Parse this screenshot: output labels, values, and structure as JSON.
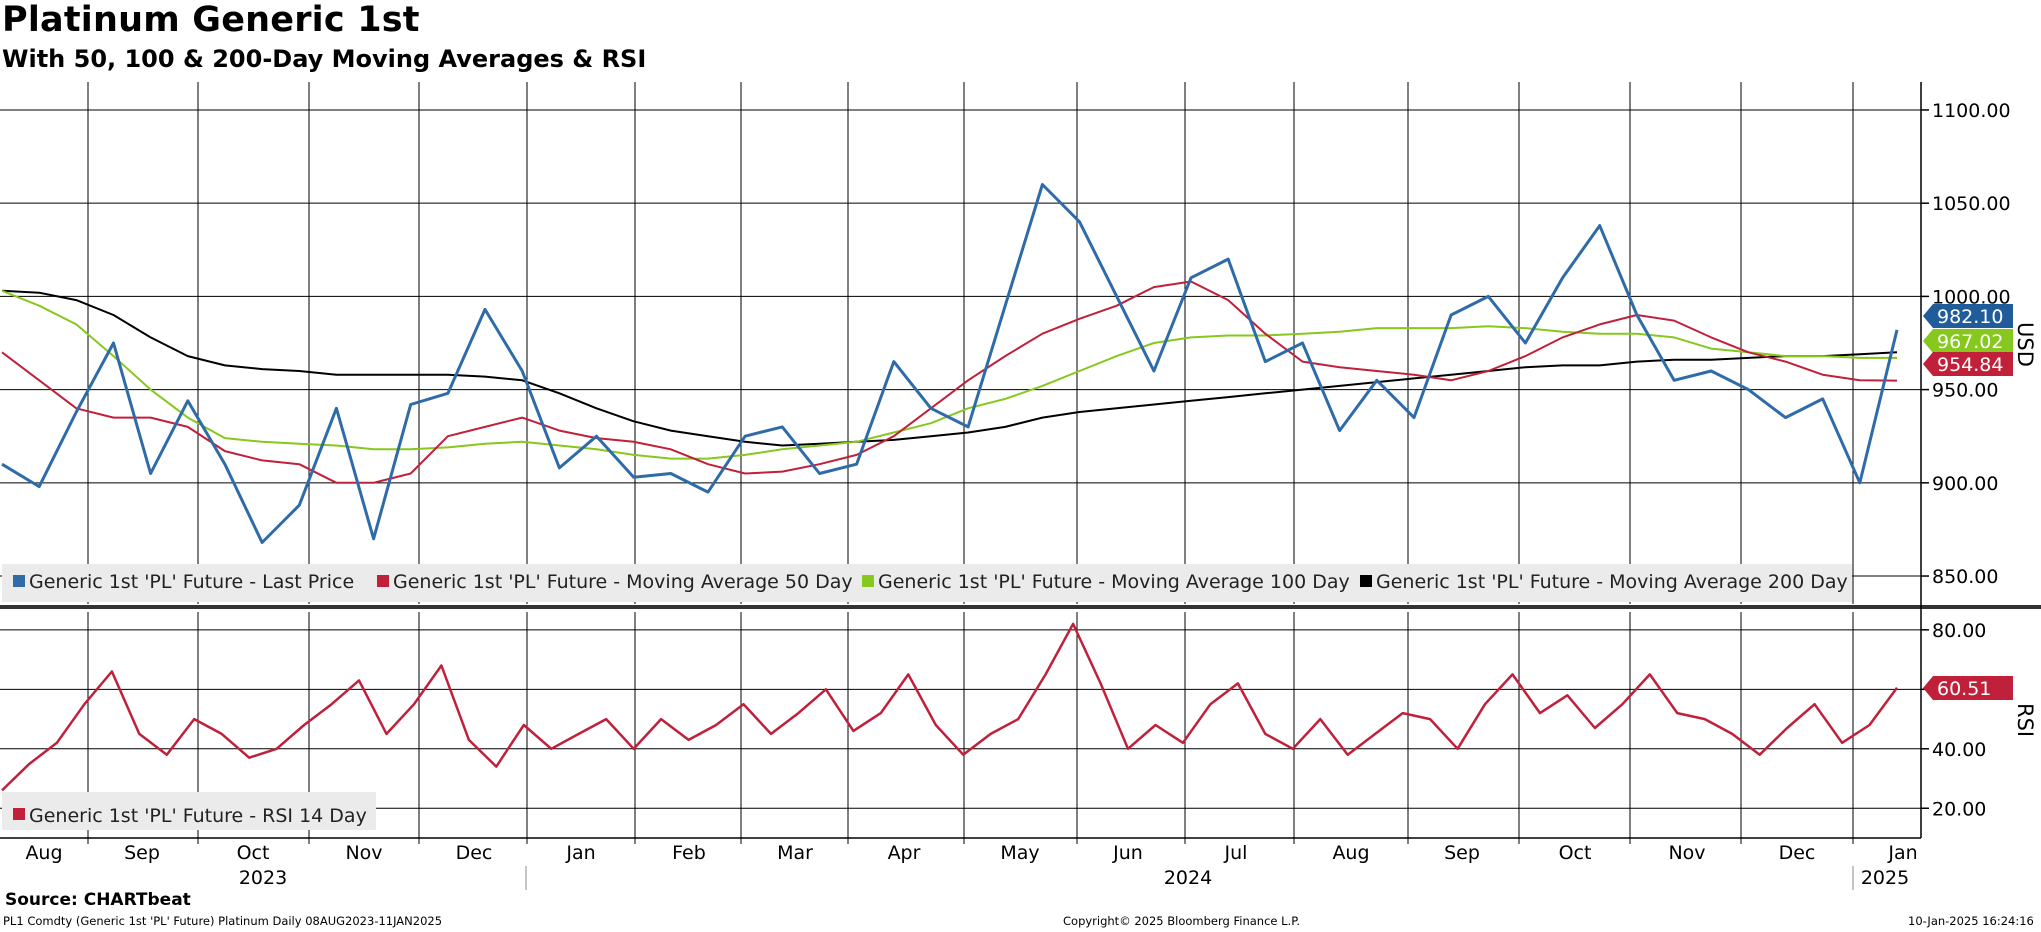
{
  "title": "Platinum Generic 1st",
  "subtitle": "With 50, 100 & 200-Day Moving Averages & RSI",
  "source": "Source: CHARTbeat",
  "footer": {
    "left": "PL1 Comdty (Generic 1st 'PL' Future) Platinum  Daily 08AUG2023-11JAN2025",
    "center": "Copyright© 2025 Bloomberg Finance L.P.",
    "right": "10-Jan-2025 16:24:16"
  },
  "colors": {
    "price": "#2E6BA8",
    "ma50": "#C0203A",
    "ma100": "#86C81E",
    "ma200": "#000000",
    "rsi": "#C0203A",
    "grid": "#000000"
  },
  "chart_data": [
    {
      "type": "line",
      "panel": "price",
      "ylabel": "USD",
      "ylim": [
        835,
        1115
      ],
      "yticks": [
        "1100.00",
        "1050.00",
        "1000.00",
        "950.00",
        "900.00",
        "850.00"
      ],
      "x_tick_labels": [
        "Aug",
        "Sep",
        "Oct",
        "Nov",
        "Dec",
        "Jan",
        "Feb",
        "Mar",
        "Apr",
        "May",
        "Jun",
        "Jul",
        "Aug",
        "Sep",
        "Oct",
        "Nov",
        "Dec",
        "Jan"
      ],
      "year_labels": [
        "2023",
        "2024",
        "2025"
      ],
      "legend": "bottom-left",
      "grid": true,
      "x": [
        "2023-08-08",
        "2023-08-18",
        "2023-08-28",
        "2023-09-08",
        "2023-09-18",
        "2023-09-28",
        "2023-10-08",
        "2023-10-18",
        "2023-10-28",
        "2023-11-08",
        "2023-11-18",
        "2023-11-28",
        "2023-12-08",
        "2023-12-18",
        "2023-12-28",
        "2024-01-08",
        "2024-01-18",
        "2024-01-28",
        "2024-02-08",
        "2024-02-18",
        "2024-02-28",
        "2024-03-08",
        "2024-03-18",
        "2024-03-28",
        "2024-04-08",
        "2024-04-18",
        "2024-04-28",
        "2024-05-08",
        "2024-05-18",
        "2024-05-28",
        "2024-06-08",
        "2024-06-18",
        "2024-06-28",
        "2024-07-08",
        "2024-07-18",
        "2024-07-28",
        "2024-08-08",
        "2024-08-18",
        "2024-08-28",
        "2024-09-08",
        "2024-09-18",
        "2024-09-28",
        "2024-10-08",
        "2024-10-18",
        "2024-10-28",
        "2024-11-08",
        "2024-11-18",
        "2024-11-28",
        "2024-12-08",
        "2024-12-18",
        "2024-12-28",
        "2025-01-10"
      ],
      "series": [
        {
          "name": "Generic 1st 'PL' Future - Last Price",
          "last_value": "982.10",
          "values": [
            910,
            898,
            938,
            975,
            905,
            944,
            910,
            868,
            888,
            940,
            870,
            942,
            948,
            993,
            960,
            908,
            925,
            903,
            905,
            895,
            925,
            930,
            905,
            910,
            965,
            940,
            930,
            995,
            1060,
            1040,
            1000,
            960,
            1010,
            1020,
            965,
            975,
            928,
            955,
            935,
            990,
            1000,
            975,
            1010,
            1038,
            990,
            955,
            960,
            950,
            935,
            945,
            900,
            982
          ]
        },
        {
          "name": "Generic 1st 'PL' Future - Moving Average 50 Day",
          "last_value": "954.84",
          "values": [
            970,
            955,
            940,
            935,
            935,
            930,
            917,
            912,
            910,
            900,
            900,
            905,
            925,
            930,
            935,
            928,
            924,
            922,
            918,
            910,
            905,
            906,
            910,
            915,
            925,
            940,
            955,
            968,
            980,
            988,
            995,
            1005,
            1008,
            998,
            980,
            965,
            962,
            960,
            958,
            955,
            960,
            968,
            978,
            985,
            990,
            987,
            978,
            970,
            965,
            958,
            955,
            954.84
          ]
        },
        {
          "name": "Generic 1st 'PL' Future - Moving Average 100 Day",
          "last_value": "967.02",
          "values": [
            1003,
            995,
            985,
            968,
            950,
            935,
            924,
            922,
            921,
            920,
            918,
            918,
            919,
            921,
            922,
            920,
            918,
            915,
            913,
            913,
            915,
            918,
            920,
            922,
            927,
            932,
            940,
            945,
            952,
            960,
            968,
            975,
            978,
            979,
            979,
            980,
            981,
            983,
            983,
            983,
            984,
            983,
            981,
            980,
            980,
            978,
            972,
            970,
            968,
            968,
            967,
            967.02
          ]
        },
        {
          "name": "Generic 1st 'PL' Future - Moving Average 200 Day",
          "last_value": "",
          "values": [
            1003,
            1002,
            998,
            990,
            978,
            968,
            963,
            961,
            960,
            958,
            958,
            958,
            958,
            957,
            955,
            948,
            940,
            933,
            928,
            925,
            922,
            920,
            921,
            922,
            923,
            925,
            927,
            930,
            935,
            938,
            940,
            942,
            944,
            946,
            948,
            950,
            952,
            954,
            956,
            958,
            960,
            962,
            963,
            963,
            965,
            966,
            966,
            967,
            968,
            968,
            969,
            970
          ]
        }
      ]
    },
    {
      "type": "line",
      "panel": "rsi",
      "ylabel": "RSI",
      "ylim": [
        10,
        86
      ],
      "yticks": [
        "80.00",
        "60.00",
        "40.00",
        "20.00"
      ],
      "legend": "bottom-left",
      "grid": true,
      "series": [
        {
          "name": "Generic 1st 'PL' Future - RSI 14 Day",
          "last_value": "60.51",
          "values": [
            26,
            35,
            42,
            55,
            66,
            45,
            38,
            50,
            45,
            37,
            40,
            48,
            55,
            63,
            45,
            55,
            68,
            43,
            34,
            48,
            40,
            45,
            50,
            40,
            50,
            43,
            48,
            55,
            45,
            52,
            60,
            46,
            52,
            65,
            48,
            38,
            45,
            50,
            65,
            82,
            62,
            40,
            48,
            42,
            55,
            62,
            45,
            40,
            50,
            38,
            45,
            52,
            50,
            40,
            55,
            65,
            52,
            58,
            47,
            55,
            65,
            52,
            50,
            45,
            38,
            47,
            55,
            42,
            48,
            60.51
          ]
        }
      ]
    }
  ]
}
